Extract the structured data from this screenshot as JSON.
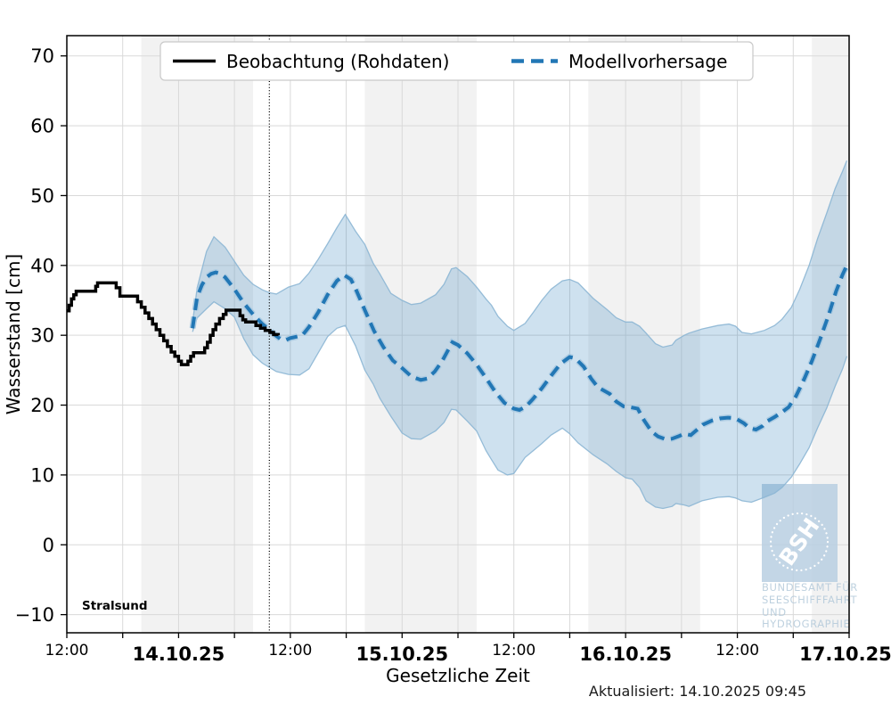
{
  "texts": {
    "station": "Stralsund",
    "updated": "Aktualisiert: 14.10.2025 09:45",
    "x_axis_title": "Gesetzliche Zeit",
    "y_axis_title": "Wasserstand [cm]"
  },
  "legend": {
    "observation_label": "Beobachtung (Rohdaten)",
    "forecast_label": "Modellvorhersage"
  },
  "watermark": {
    "bsh": "BSH",
    "lines": [
      "BUNDESAMT FÜR",
      "SEESCHIFFFAHRT",
      "UND",
      "HYDROGRAPHIE"
    ]
  },
  "colors": {
    "observation": "#000000",
    "forecast": "#2277b5",
    "forecast_halo": "#accbe2",
    "band_fill": "#1f77b4",
    "band_fill_opacity": 0.22,
    "band_edge": "#8cb6d4",
    "night_band": "#f2f2f2",
    "grid": "#d9d9d9",
    "frame": "#000000",
    "legend_border": "#c9c9c9",
    "watermark_blue": "#b9cfe2",
    "watermark_text": "#b3c9da"
  },
  "chart_data": {
    "type": "line",
    "title": "",
    "xlabel": "Gesetzliche Zeit",
    "ylabel": "Wasserstand [cm]",
    "x_axis_start": "13.10.2025 12:00",
    "x_hours_total": 84,
    "ylim": [
      -12.6,
      72.9
    ],
    "yticks": [
      -10,
      0,
      10,
      20,
      30,
      40,
      50,
      60,
      70
    ],
    "xgrid_step_hours": 6,
    "xticks": [
      {
        "t": 0,
        "label": "12:00",
        "bold": false
      },
      {
        "t": 12,
        "label": "14.10.25",
        "bold": true
      },
      {
        "t": 24,
        "label": "12:00",
        "bold": false
      },
      {
        "t": 36,
        "label": "15.10.25",
        "bold": true
      },
      {
        "t": 48,
        "label": "12:00",
        "bold": false
      },
      {
        "t": 60,
        "label": "16.10.25",
        "bold": true
      },
      {
        "t": 72,
        "label": "12:00",
        "bold": false
      },
      {
        "t": 84,
        "label": "17.10.25",
        "bold": true
      }
    ],
    "night_bands_hours": [
      [
        8,
        20
      ],
      [
        32,
        44
      ],
      [
        56,
        68
      ],
      [
        80,
        84
      ]
    ],
    "forecast_start_t": 21.75,
    "forecast_start_label": "14.10.2025 09:45",
    "series": [
      {
        "name": "Beobachtung (Rohdaten)",
        "render": "step",
        "points": [
          [
            0,
            33.5
          ],
          [
            0.25,
            34.3
          ],
          [
            0.5,
            35.2
          ],
          [
            0.75,
            35.8
          ],
          [
            1.0,
            36.3
          ],
          [
            3.1,
            37.0
          ],
          [
            3.3,
            37.5
          ],
          [
            5.3,
            36.8
          ],
          [
            5.7,
            35.6
          ],
          [
            7.6,
            34.8
          ],
          [
            8.0,
            34.0
          ],
          [
            8.4,
            33.2
          ],
          [
            8.8,
            32.4
          ],
          [
            9.2,
            31.6
          ],
          [
            9.6,
            30.8
          ],
          [
            10.0,
            30.0
          ],
          [
            10.4,
            29.2
          ],
          [
            10.8,
            28.4
          ],
          [
            11.2,
            27.6
          ],
          [
            11.6,
            27.0
          ],
          [
            12.0,
            26.3
          ],
          [
            12.3,
            25.8
          ],
          [
            13.0,
            26.3
          ],
          [
            13.3,
            27.0
          ],
          [
            13.6,
            27.5
          ],
          [
            14.8,
            28.2
          ],
          [
            15.1,
            29.0
          ],
          [
            15.4,
            30.0
          ],
          [
            15.7,
            30.8
          ],
          [
            16.0,
            31.6
          ],
          [
            16.4,
            32.4
          ],
          [
            16.8,
            33.0
          ],
          [
            17.1,
            33.6
          ],
          [
            18.6,
            32.8
          ],
          [
            18.9,
            32.2
          ],
          [
            19.2,
            31.9
          ],
          [
            20.3,
            31.4
          ],
          [
            20.8,
            31.0
          ],
          [
            21.3,
            30.7
          ],
          [
            21.8,
            30.4
          ],
          [
            22.2,
            30.1
          ],
          [
            22.7,
            30.0
          ]
        ]
      },
      {
        "name": "Modellvorhersage",
        "render": "dashed",
        "points": [
          [
            13.5,
            31.0
          ],
          [
            14.0,
            35.5
          ],
          [
            14.5,
            37.2
          ],
          [
            15.0,
            38.3
          ],
          [
            15.5,
            38.8
          ],
          [
            16.0,
            39.0
          ],
          [
            16.5,
            38.8
          ],
          [
            17.0,
            38.3
          ],
          [
            18.0,
            36.6
          ],
          [
            19.0,
            34.6
          ],
          [
            20.0,
            33.0
          ],
          [
            21.0,
            31.6
          ],
          [
            21.75,
            30.8
          ],
          [
            22.5,
            29.9
          ],
          [
            23.0,
            29.4
          ],
          [
            23.5,
            29.3
          ],
          [
            24.0,
            29.6
          ],
          [
            24.7,
            29.8
          ],
          [
            25.3,
            30.0
          ],
          [
            26.0,
            31.2
          ],
          [
            27.0,
            33.3
          ],
          [
            28.0,
            35.8
          ],
          [
            29.0,
            37.8
          ],
          [
            29.8,
            38.6
          ],
          [
            30.5,
            38.0
          ],
          [
            31.0,
            36.7
          ],
          [
            32.0,
            33.6
          ],
          [
            33.0,
            30.6
          ],
          [
            34.0,
            28.3
          ],
          [
            35.0,
            26.4
          ],
          [
            36.0,
            25.3
          ],
          [
            37.0,
            24.1
          ],
          [
            38.0,
            23.6
          ],
          [
            38.7,
            23.8
          ],
          [
            39.5,
            24.8
          ],
          [
            40.3,
            26.3
          ],
          [
            41.0,
            28.0
          ],
          [
            41.4,
            29.0
          ],
          [
            42.0,
            28.6
          ],
          [
            43.0,
            27.4
          ],
          [
            44.0,
            25.8
          ],
          [
            45.0,
            23.9
          ],
          [
            46.0,
            21.9
          ],
          [
            47.0,
            20.3
          ],
          [
            48.0,
            19.5
          ],
          [
            48.6,
            19.3
          ],
          [
            49.3,
            19.8
          ],
          [
            50.0,
            20.8
          ],
          [
            51.0,
            22.4
          ],
          [
            52.0,
            24.2
          ],
          [
            53.0,
            25.9
          ],
          [
            54.0,
            26.9
          ],
          [
            54.6,
            26.7
          ],
          [
            55.5,
            25.5
          ],
          [
            56.3,
            23.8
          ],
          [
            57.0,
            22.6
          ],
          [
            57.5,
            22.2
          ],
          [
            58.3,
            21.6
          ],
          [
            59.0,
            20.5
          ],
          [
            59.8,
            19.8
          ],
          [
            60.5,
            19.7
          ],
          [
            61.3,
            19.5
          ],
          [
            62.0,
            17.8
          ],
          [
            62.8,
            16.2
          ],
          [
            63.5,
            15.5
          ],
          [
            64.3,
            15.1
          ],
          [
            65.0,
            15.2
          ],
          [
            65.8,
            15.6
          ],
          [
            66.3,
            15.9
          ],
          [
            67.0,
            15.7
          ],
          [
            68.3,
            17.2
          ],
          [
            69.3,
            17.8
          ],
          [
            70.2,
            18.1
          ],
          [
            71.0,
            18.2
          ],
          [
            71.8,
            18.1
          ],
          [
            72.7,
            17.4
          ],
          [
            73.3,
            16.7
          ],
          [
            74.0,
            16.5
          ],
          [
            74.7,
            17.0
          ],
          [
            75.2,
            17.7
          ],
          [
            76.0,
            18.3
          ],
          [
            76.8,
            19.0
          ],
          [
            77.5,
            19.7
          ],
          [
            78.3,
            21.3
          ],
          [
            79.2,
            23.8
          ],
          [
            80.0,
            26.3
          ],
          [
            80.9,
            29.5
          ],
          [
            81.8,
            32.9
          ],
          [
            82.6,
            36.3
          ],
          [
            83.3,
            38.7
          ],
          [
            83.75,
            40.0
          ]
        ]
      },
      {
        "name": "Vorhersage-Unsicherheitsband",
        "render": "band",
        "points_lo_hi": [
          [
            13.5,
            30.5,
            31.8
          ],
          [
            14.0,
            32.5,
            36.8
          ],
          [
            15.0,
            33.8,
            42.0
          ],
          [
            15.8,
            34.8,
            44.1
          ],
          [
            17.0,
            33.8,
            42.6
          ],
          [
            18.0,
            32.6,
            40.6
          ],
          [
            19.0,
            29.5,
            38.6
          ],
          [
            20.0,
            27.2,
            37.3
          ],
          [
            21.0,
            26.0,
            36.5
          ],
          [
            21.75,
            25.4,
            36.1
          ],
          [
            22.5,
            24.8,
            35.9
          ],
          [
            23.8,
            24.4,
            36.9
          ],
          [
            25.0,
            24.3,
            37.4
          ],
          [
            26.0,
            25.2,
            38.9
          ],
          [
            27.0,
            27.5,
            40.9
          ],
          [
            28.0,
            29.8,
            43.1
          ],
          [
            29.0,
            31.0,
            45.4
          ],
          [
            29.9,
            31.4,
            47.3
          ],
          [
            31.0,
            28.5,
            44.9
          ],
          [
            32.0,
            25.0,
            43.0
          ],
          [
            32.9,
            23.0,
            40.3
          ],
          [
            33.6,
            21.0,
            38.8
          ],
          [
            34.8,
            18.4,
            36.0
          ],
          [
            36.0,
            16.0,
            35.0
          ],
          [
            37.0,
            15.2,
            34.4
          ],
          [
            38.0,
            15.1,
            34.6
          ],
          [
            39.6,
            16.3,
            35.8
          ],
          [
            40.5,
            17.5,
            37.3
          ],
          [
            41.3,
            19.4,
            39.5
          ],
          [
            41.8,
            19.3,
            39.7
          ],
          [
            43.0,
            17.7,
            38.4
          ],
          [
            44.0,
            16.3,
            36.9
          ],
          [
            45.0,
            13.5,
            35.2
          ],
          [
            45.6,
            12.2,
            34.3
          ],
          [
            46.3,
            10.7,
            32.7
          ],
          [
            47.3,
            10.0,
            31.3
          ],
          [
            48.0,
            10.2,
            30.7
          ],
          [
            49.2,
            12.5,
            31.7
          ],
          [
            50.1,
            13.5,
            33.3
          ],
          [
            51.0,
            14.5,
            35.0
          ],
          [
            52.0,
            15.7,
            36.6
          ],
          [
            53.2,
            16.7,
            37.8
          ],
          [
            54.0,
            15.9,
            38.0
          ],
          [
            54.9,
            14.6,
            37.5
          ],
          [
            56.5,
            12.9,
            35.3
          ],
          [
            58.0,
            11.6,
            33.7
          ],
          [
            59.0,
            10.5,
            32.5
          ],
          [
            60.0,
            9.6,
            31.9
          ],
          [
            60.7,
            9.4,
            31.9
          ],
          [
            61.5,
            8.2,
            31.3
          ],
          [
            62.2,
            6.3,
            30.3
          ],
          [
            63.2,
            5.4,
            28.8
          ],
          [
            64.0,
            5.2,
            28.3
          ],
          [
            65.0,
            5.5,
            28.6
          ],
          [
            65.4,
            5.9,
            29.3
          ],
          [
            66.3,
            5.7,
            30.0
          ],
          [
            66.8,
            5.5,
            30.3
          ],
          [
            68.2,
            6.3,
            30.9
          ],
          [
            69.9,
            6.8,
            31.4
          ],
          [
            71.1,
            6.9,
            31.6
          ],
          [
            71.8,
            6.7,
            31.3
          ],
          [
            72.5,
            6.3,
            30.4
          ],
          [
            73.5,
            6.1,
            30.2
          ],
          [
            74.9,
            6.8,
            30.7
          ],
          [
            76.0,
            7.4,
            31.4
          ],
          [
            76.8,
            8.2,
            32.3
          ],
          [
            77.8,
            9.7,
            34.0
          ],
          [
            78.7,
            11.6,
            36.6
          ],
          [
            79.7,
            13.9,
            40.0
          ],
          [
            80.6,
            16.7,
            43.8
          ],
          [
            81.6,
            19.6,
            47.5
          ],
          [
            82.5,
            22.7,
            51.0
          ],
          [
            83.3,
            25.2,
            53.5
          ],
          [
            83.75,
            27.0,
            55.0
          ]
        ]
      }
    ]
  }
}
